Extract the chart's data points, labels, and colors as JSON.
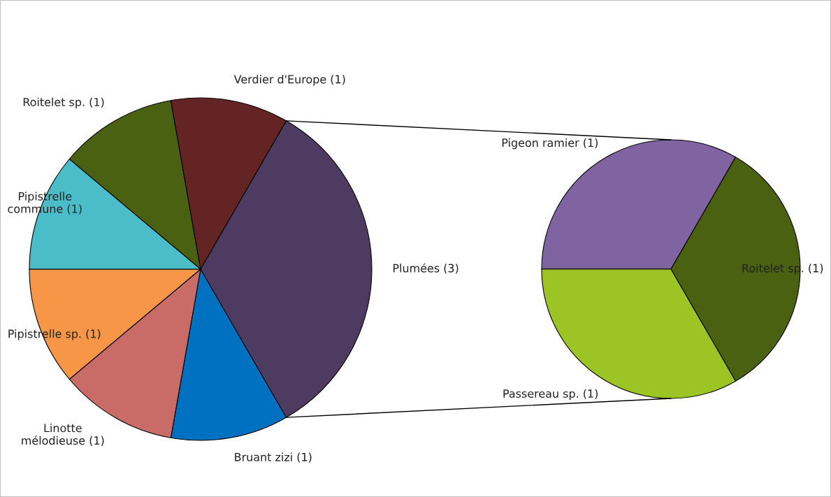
{
  "chart_data": [
    {
      "type": "pie",
      "categories": [
        "Plumées (3)",
        "Bruant zizi (1)",
        "Linotte\nmélodieuse (1)",
        "Pipistrelle sp. (1)",
        "Pipistrelle\ncommune (1)",
        "Roitelet sp. (1)",
        "Verdier d'Europe (1)"
      ],
      "values": [
        3,
        1,
        1,
        1,
        1,
        1,
        1
      ],
      "colors": [
        "#4e3b62",
        "#0070c0",
        "#c96b67",
        "#f79646",
        "#4bbdc9",
        "#4b6112",
        "#632423"
      ]
    },
    {
      "type": "pie",
      "categories": [
        "Pigeon ramier (1)",
        "Roitelet sp. (1)",
        "Passereau sp. (1)"
      ],
      "values": [
        1,
        1,
        1
      ],
      "colors": [
        "#8064a2",
        "#4b6112",
        "#9bc424"
      ]
    }
  ]
}
